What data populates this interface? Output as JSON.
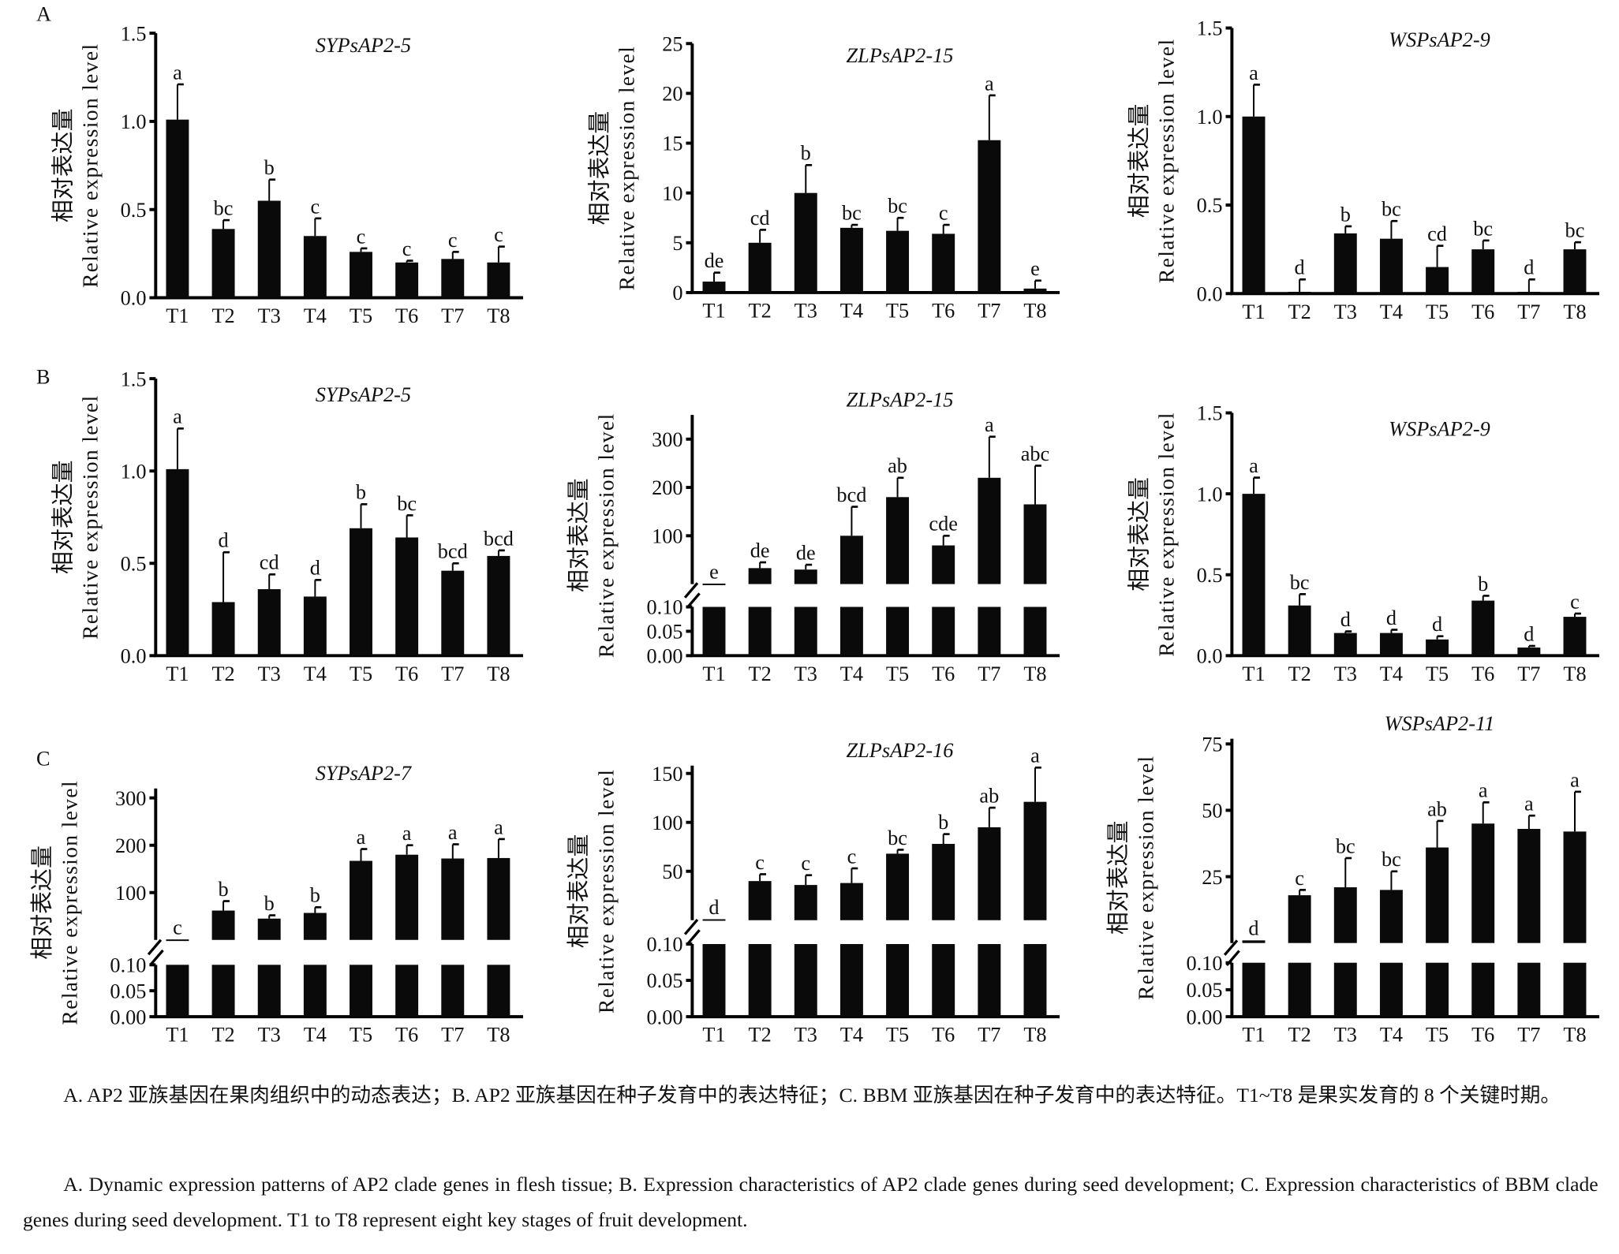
{
  "panels": [
    "A",
    "B",
    "C"
  ],
  "x_categories": [
    "T1",
    "T2",
    "T3",
    "T4",
    "T5",
    "T6",
    "T7",
    "T8"
  ],
  "ylabel_cn": "相对表达量",
  "ylabel_en": "Relative expression level",
  "bar_color": "#0a0a0a",
  "chart_data": [
    {
      "type": "bar",
      "panel": "A",
      "title": "SYPsAP2-5",
      "ylim": [
        0,
        1.5
      ],
      "yticks": [
        "0.0",
        "0.5",
        "1.0",
        "1.5"
      ],
      "ytick_values": [
        0,
        0.5,
        1.0,
        1.5
      ],
      "values": [
        1.01,
        0.39,
        0.55,
        0.35,
        0.26,
        0.2,
        0.22,
        0.2
      ],
      "errors": [
        0.2,
        0.05,
        0.12,
        0.1,
        0.02,
        0.01,
        0.04,
        0.09
      ],
      "letters": [
        "a",
        "bc",
        "b",
        "c",
        "c",
        "c",
        "c",
        "c"
      ]
    },
    {
      "type": "bar",
      "panel": "A",
      "title": "ZLPsAP2-15",
      "ylim": [
        0,
        25
      ],
      "yticks": [
        "0",
        "5",
        "10",
        "15",
        "20",
        "25"
      ],
      "ytick_values": [
        0,
        5,
        10,
        15,
        20,
        25
      ],
      "values": [
        1.1,
        5.0,
        10.0,
        6.5,
        6.2,
        5.9,
        15.3,
        0.4
      ],
      "errors": [
        0.9,
        1.3,
        2.8,
        0.3,
        1.3,
        0.9,
        4.5,
        0.8
      ],
      "letters": [
        "de",
        "cd",
        "b",
        "bc",
        "bc",
        "c",
        "a",
        "e"
      ]
    },
    {
      "type": "bar",
      "panel": "A",
      "title": "WSPsAP2-9",
      "ylim": [
        0,
        1.5
      ],
      "yticks": [
        "0.0",
        "0.5",
        "1.0",
        "1.5"
      ],
      "ytick_values": [
        0,
        0.5,
        1.0,
        1.5
      ],
      "values": [
        1.0,
        0.01,
        0.34,
        0.31,
        0.15,
        0.25,
        0.01,
        0.25
      ],
      "errors": [
        0.18,
        0.07,
        0.04,
        0.1,
        0.12,
        0.05,
        0.07,
        0.04
      ],
      "letters": [
        "a",
        "d",
        "b",
        "bc",
        "cd",
        "bc",
        "d",
        "bc"
      ]
    },
    {
      "type": "bar",
      "panel": "B",
      "title": "SYPsAP2-5",
      "ylim": [
        0,
        1.5
      ],
      "yticks": [
        "0.0",
        "0.5",
        "1.0",
        "1.5"
      ],
      "ytick_values": [
        0,
        0.5,
        1.0,
        1.5
      ],
      "values": [
        1.01,
        0.29,
        0.36,
        0.32,
        0.69,
        0.64,
        0.46,
        0.54
      ],
      "errors": [
        0.22,
        0.27,
        0.08,
        0.09,
        0.13,
        0.12,
        0.04,
        0.03
      ],
      "letters": [
        "a",
        "d",
        "cd",
        "d",
        "b",
        "bc",
        "bcd",
        "bcd"
      ]
    },
    {
      "type": "bar",
      "panel": "B",
      "title": "ZLPsAP2-15",
      "broken_axis": true,
      "ylim": [
        0,
        350
      ],
      "yticks": [
        "100",
        "200",
        "300"
      ],
      "ytick_values": [
        100,
        200,
        300
      ],
      "lower_ylim": [
        0,
        0.1
      ],
      "lower_yticks": [
        "0.00",
        "0.05",
        "0.10"
      ],
      "lower_ytick_values": [
        0,
        0.05,
        0.1
      ],
      "values": [
        1,
        33,
        30,
        100,
        180,
        80,
        220,
        165
      ],
      "errors": [
        0,
        12,
        10,
        60,
        40,
        20,
        85,
        80
      ],
      "letters": [
        "e",
        "de",
        "de",
        "bcd",
        "ab",
        "cde",
        "a",
        "abc"
      ]
    },
    {
      "type": "bar",
      "panel": "B",
      "title": "WSPsAP2-9",
      "ylim": [
        0,
        1.5
      ],
      "yticks": [
        "0.0",
        "0.5",
        "1.0",
        "1.5"
      ],
      "ytick_values": [
        0,
        0.5,
        1.0,
        1.5
      ],
      "values": [
        1.0,
        0.31,
        0.14,
        0.14,
        0.1,
        0.34,
        0.05,
        0.24
      ],
      "errors": [
        0.1,
        0.07,
        0.01,
        0.02,
        0.02,
        0.03,
        0.01,
        0.02
      ],
      "letters": [
        "a",
        "bc",
        "d",
        "d",
        "d",
        "b",
        "d",
        "c"
      ]
    },
    {
      "type": "bar",
      "panel": "C",
      "title": "SYPsAP2-7",
      "broken_axis": true,
      "ylim": [
        0,
        320
      ],
      "yticks": [
        "100",
        "200",
        "300"
      ],
      "ytick_values": [
        100,
        200,
        300
      ],
      "lower_ylim": [
        0,
        0.1
      ],
      "lower_yticks": [
        "0.00",
        "0.05",
        "0.10"
      ],
      "lower_ytick_values": [
        0,
        0.05,
        0.1
      ],
      "values": [
        1,
        62,
        45,
        57,
        167,
        180,
        172,
        173
      ],
      "errors": [
        0,
        20,
        7,
        12,
        25,
        20,
        30,
        40
      ],
      "letters": [
        "c",
        "b",
        "b",
        "b",
        "a",
        "a",
        "a",
        "a"
      ]
    },
    {
      "type": "bar",
      "panel": "C",
      "title": "ZLPsAP2-16",
      "broken_axis": true,
      "ylim": [
        0,
        158
      ],
      "yticks": [
        "50",
        "100",
        "150"
      ],
      "ytick_values": [
        50,
        100,
        150
      ],
      "lower_ylim": [
        0,
        0.1
      ],
      "lower_yticks": [
        "0.00",
        "0.05",
        "0.10"
      ],
      "lower_ytick_values": [
        0,
        0.05,
        0.1
      ],
      "values": [
        1,
        40,
        36,
        38,
        68,
        78,
        95,
        121
      ],
      "errors": [
        0,
        7,
        10,
        15,
        4,
        10,
        20,
        35
      ],
      "letters": [
        "d",
        "c",
        "c",
        "c",
        "bc",
        "b",
        "ab",
        "a"
      ]
    },
    {
      "type": "bar",
      "panel": "C",
      "title": "WSPsAP2-11",
      "broken_axis": true,
      "ylim": [
        0,
        77
      ],
      "yticks": [
        "25",
        "50",
        "75"
      ],
      "ytick_values": [
        25,
        50,
        75
      ],
      "lower_ylim": [
        0,
        0.1
      ],
      "lower_yticks": [
        "0.00",
        "0.05",
        "0.10"
      ],
      "lower_ytick_values": [
        0,
        0.05,
        0.1
      ],
      "values": [
        1,
        18,
        21,
        20,
        36,
        45,
        43,
        42
      ],
      "errors": [
        0,
        2,
        11,
        7,
        10,
        8,
        5,
        15
      ],
      "letters": [
        "d",
        "c",
        "bc",
        "bc",
        "ab",
        "a",
        "a",
        "a"
      ]
    }
  ],
  "caption": {
    "cn_line": "A. AP2 亚族基因在果肉组织中的动态表达；B. AP2 亚族基因在种子发育中的表达特征；C. BBM 亚族基因在种子发育中的表达特征。T1~T8 是果实发育的 8 个关键时期。",
    "en_line": "A. Dynamic expression patterns of AP2 clade genes in flesh tissue; B. Expression characteristics of AP2 clade genes during seed development; C. Expression characteristics of BBM clade genes during seed development. T1 to T8 represent eight key stages of fruit development."
  }
}
